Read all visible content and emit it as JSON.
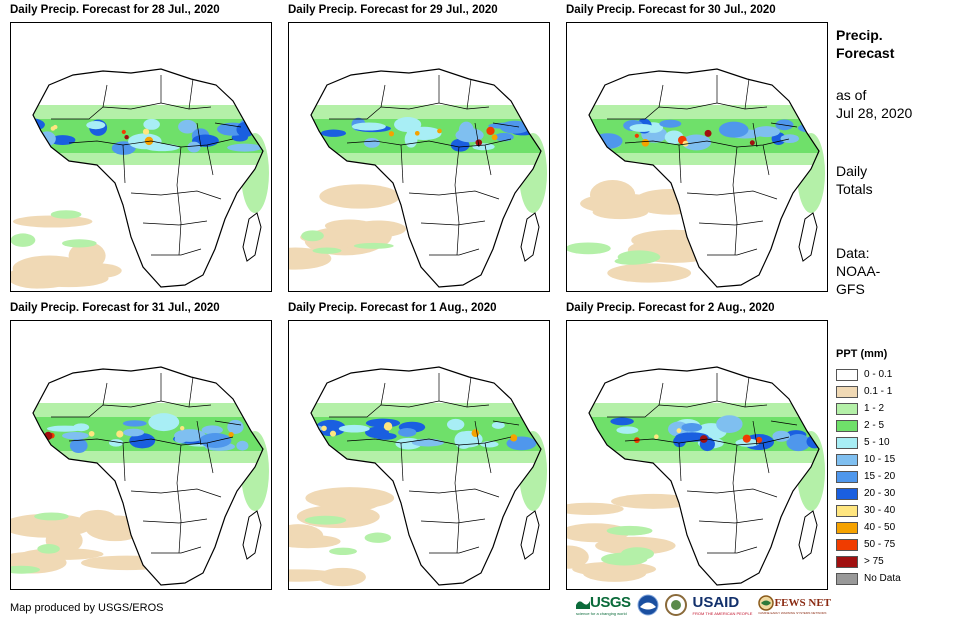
{
  "panels": [
    {
      "title": "Daily Precip. Forecast for 28 Jul., 2020"
    },
    {
      "title": "Daily Precip. Forecast for 29 Jul., 2020"
    },
    {
      "title": "Daily Precip. Forecast for 30 Jul., 2020"
    },
    {
      "title": "Daily Precip. Forecast for 31 Jul., 2020"
    },
    {
      "title": "Daily Precip. Forecast for 1 Aug., 2020"
    },
    {
      "title": "Daily Precip. Forecast for 2 Aug., 2020"
    }
  ],
  "side": {
    "title_line1": "Precip.",
    "title_line2": "Forecast",
    "asof_line1": "as of",
    "asof_line2": "Jul 28, 2020",
    "daily_line1": "Daily",
    "daily_line2": "Totals",
    "data_line1": "Data:",
    "data_line2": "NOAA-",
    "data_line3": "GFS"
  },
  "legend": {
    "title": "PPT (mm)",
    "items": [
      {
        "label": "0 - 0.1",
        "color": "#ffffff"
      },
      {
        "label": "0.1 - 1",
        "color": "#f0d9b5"
      },
      {
        "label": "1 - 2",
        "color": "#b4f0a8"
      },
      {
        "label": "2 - 5",
        "color": "#6fe06a"
      },
      {
        "label": "5 - 10",
        "color": "#a8eef5"
      },
      {
        "label": "10 - 15",
        "color": "#7fbff0"
      },
      {
        "label": "15 - 20",
        "color": "#4f97ec"
      },
      {
        "label": "20 - 30",
        "color": "#1a5fe0"
      },
      {
        "label": "30 - 40",
        "color": "#ffe680"
      },
      {
        "label": "40 - 50",
        "color": "#f5a200"
      },
      {
        "label": "50 - 75",
        "color": "#f03c00"
      },
      {
        "label": "> 75",
        "color": "#a01010"
      },
      {
        "label": "No Data",
        "color": "#999999"
      }
    ]
  },
  "credit": "Map produced by USGS/EROS",
  "logos": {
    "usgs": "USGS",
    "usgs_tagline": "science for a changing world",
    "usaid": "USAID",
    "usaid_tagline": "FROM THE AMERICAN PEOPLE",
    "fewsnet": "FEWS NET",
    "fewsnet_tagline": "FAMINE EARLY WARNING SYSTEMS NETWORK"
  }
}
